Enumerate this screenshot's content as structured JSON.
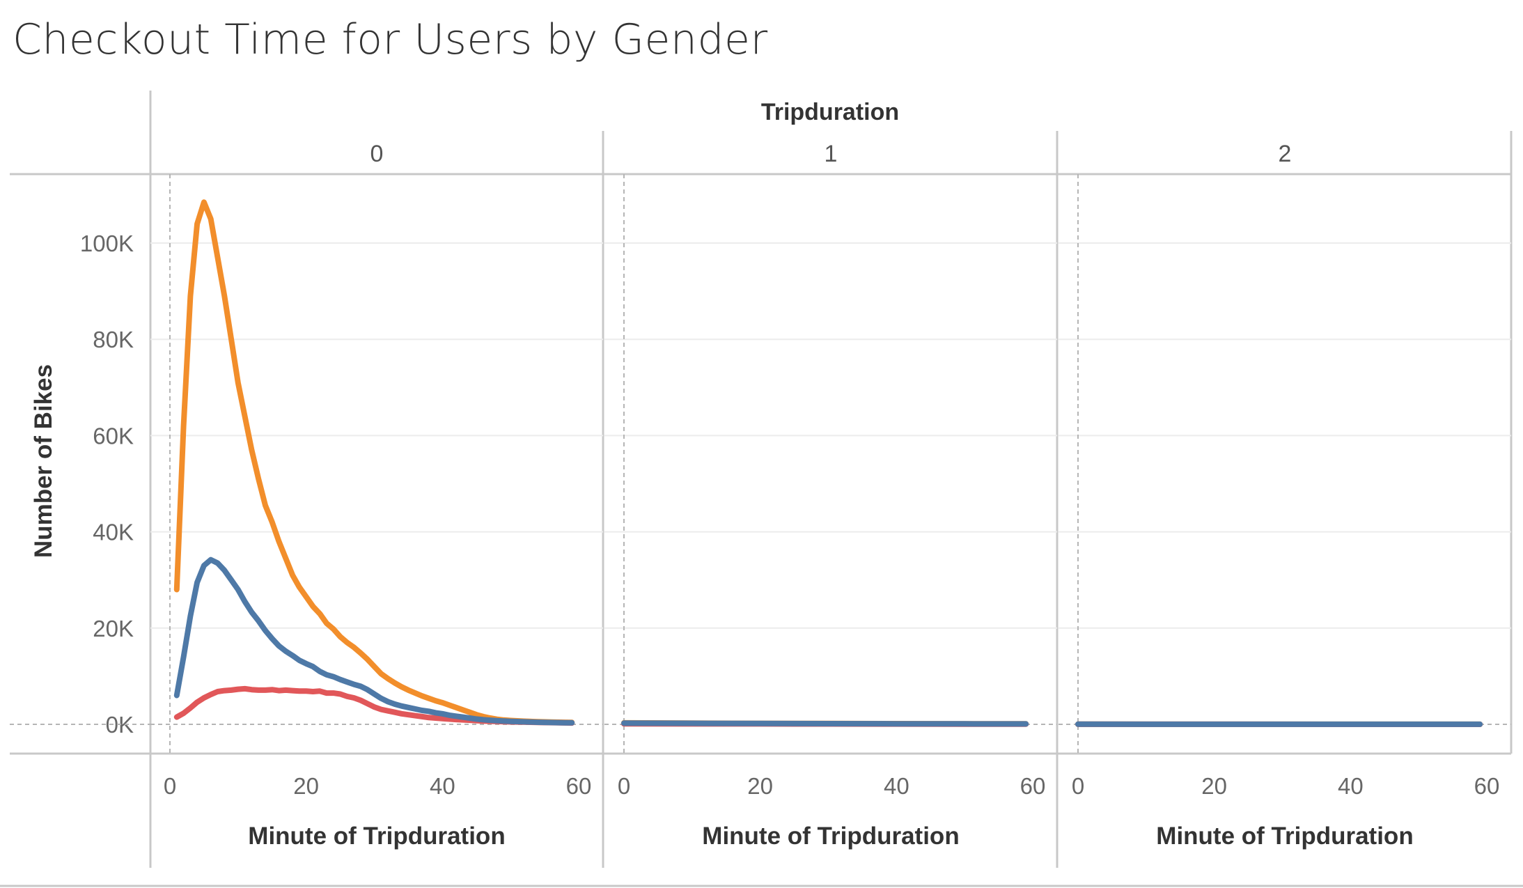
{
  "title": "Checkout Time for Users by Gender",
  "chart_data": {
    "type": "line",
    "column_header": "Tripduration",
    "ylabel": "Number of Bikes",
    "xlabel": "Minute of Tripduration",
    "ylim": [
      0,
      110000
    ],
    "xlim": [
      0,
      60
    ],
    "y_ticks": [
      {
        "value": 0,
        "label": "0K"
      },
      {
        "value": 20000,
        "label": "20K"
      },
      {
        "value": 40000,
        "label": "40K"
      },
      {
        "value": 60000,
        "label": "60K"
      },
      {
        "value": 80000,
        "label": "80K"
      },
      {
        "value": 100000,
        "label": "100K"
      }
    ],
    "x_ticks": [
      {
        "value": 0,
        "label": "0"
      },
      {
        "value": 20,
        "label": "20"
      },
      {
        "value": 40,
        "label": "40"
      },
      {
        "value": 60,
        "label": "60"
      }
    ],
    "grid": true,
    "colors": {
      "orange": "#F28E2B",
      "blue": "#4E79A7",
      "red": "#E15759"
    },
    "panels": [
      {
        "label": "0",
        "series": [
          {
            "color": "#F28E2B",
            "points": [
              [
                1,
                28000
              ],
              [
                2,
                62000
              ],
              [
                3,
                89000
              ],
              [
                4,
                104000
              ],
              [
                5,
                108500
              ],
              [
                6,
                105000
              ],
              [
                7,
                97000
              ],
              [
                8,
                89000
              ],
              [
                9,
                80000
              ],
              [
                10,
                71000
              ],
              [
                11,
                64000
              ],
              [
                12,
                57000
              ],
              [
                13,
                51000
              ],
              [
                14,
                45500
              ],
              [
                15,
                42000
              ],
              [
                16,
                38000
              ],
              [
                17,
                34500
              ],
              [
                18,
                31000
              ],
              [
                19,
                28500
              ],
              [
                20,
                26500
              ],
              [
                21,
                24500
              ],
              [
                22,
                23000
              ],
              [
                23,
                21000
              ],
              [
                24,
                19800
              ],
              [
                25,
                18200
              ],
              [
                26,
                17000
              ],
              [
                27,
                16000
              ],
              [
                28,
                14800
              ],
              [
                29,
                13500
              ],
              [
                30,
                12000
              ],
              [
                31,
                10500
              ],
              [
                32,
                9500
              ],
              [
                33,
                8600
              ],
              [
                34,
                7800
              ],
              [
                35,
                7100
              ],
              [
                36,
                6500
              ],
              [
                37,
                5900
              ],
              [
                38,
                5400
              ],
              [
                39,
                4900
              ],
              [
                40,
                4500
              ],
              [
                41,
                4000
              ],
              [
                42,
                3500
              ],
              [
                43,
                3000
              ],
              [
                44,
                2500
              ],
              [
                45,
                2000
              ],
              [
                46,
                1600
              ],
              [
                47,
                1300
              ],
              [
                48,
                1050
              ],
              [
                49,
                900
              ],
              [
                50,
                800
              ],
              [
                52,
                650
              ],
              [
                54,
                550
              ],
              [
                56,
                480
              ],
              [
                58,
                420
              ],
              [
                59,
                400
              ]
            ]
          },
          {
            "color": "#E15759",
            "points": [
              [
                1,
                1500
              ],
              [
                2,
                2300
              ],
              [
                3,
                3400
              ],
              [
                4,
                4600
              ],
              [
                5,
                5500
              ],
              [
                6,
                6200
              ],
              [
                7,
                6800
              ],
              [
                8,
                7000
              ],
              [
                9,
                7100
              ],
              [
                10,
                7300
              ],
              [
                11,
                7400
              ],
              [
                12,
                7200
              ],
              [
                13,
                7100
              ],
              [
                14,
                7100
              ],
              [
                15,
                7200
              ],
              [
                16,
                7000
              ],
              [
                17,
                7100
              ],
              [
                18,
                7000
              ],
              [
                19,
                6900
              ],
              [
                20,
                6900
              ],
              [
                21,
                6800
              ],
              [
                22,
                6900
              ],
              [
                23,
                6500
              ],
              [
                24,
                6500
              ],
              [
                25,
                6300
              ],
              [
                26,
                5800
              ],
              [
                27,
                5500
              ],
              [
                28,
                5000
              ],
              [
                29,
                4300
              ],
              [
                30,
                3600
              ],
              [
                31,
                3100
              ],
              [
                32,
                2800
              ],
              [
                33,
                2500
              ],
              [
                34,
                2200
              ],
              [
                35,
                2000
              ],
              [
                36,
                1800
              ],
              [
                37,
                1600
              ],
              [
                38,
                1400
              ],
              [
                39,
                1300
              ],
              [
                40,
                1200
              ],
              [
                42,
                1000
              ],
              [
                44,
                850
              ],
              [
                46,
                700
              ],
              [
                48,
                600
              ],
              [
                50,
                500
              ],
              [
                54,
                400
              ],
              [
                58,
                300
              ],
              [
                59,
                280
              ]
            ]
          },
          {
            "color": "#4E79A7",
            "points": [
              [
                1,
                6000
              ],
              [
                2,
                14000
              ],
              [
                3,
                22500
              ],
              [
                4,
                29500
              ],
              [
                5,
                33000
              ],
              [
                6,
                34200
              ],
              [
                7,
                33500
              ],
              [
                8,
                32000
              ],
              [
                9,
                30000
              ],
              [
                10,
                28000
              ],
              [
                11,
                25500
              ],
              [
                12,
                23300
              ],
              [
                13,
                21500
              ],
              [
                14,
                19500
              ],
              [
                15,
                17800
              ],
              [
                16,
                16300
              ],
              [
                17,
                15200
              ],
              [
                18,
                14300
              ],
              [
                19,
                13300
              ],
              [
                20,
                12600
              ],
              [
                21,
                12000
              ],
              [
                22,
                11000
              ],
              [
                23,
                10300
              ],
              [
                24,
                9900
              ],
              [
                25,
                9300
              ],
              [
                26,
                8800
              ],
              [
                27,
                8300
              ],
              [
                28,
                7900
              ],
              [
                29,
                7200
              ],
              [
                30,
                6300
              ],
              [
                31,
                5400
              ],
              [
                32,
                4700
              ],
              [
                33,
                4200
              ],
              [
                34,
                3800
              ],
              [
                35,
                3500
              ],
              [
                36,
                3200
              ],
              [
                37,
                2900
              ],
              [
                38,
                2700
              ],
              [
                39,
                2400
              ],
              [
                40,
                2200
              ],
              [
                41,
                1900
              ],
              [
                42,
                1700
              ],
              [
                43,
                1500
              ],
              [
                44,
                1300
              ],
              [
                45,
                1100
              ],
              [
                46,
                950
              ],
              [
                47,
                850
              ],
              [
                48,
                750
              ],
              [
                50,
                620
              ],
              [
                52,
                520
              ],
              [
                54,
                440
              ],
              [
                56,
                380
              ],
              [
                58,
                340
              ],
              [
                59,
                320
              ]
            ]
          }
        ]
      },
      {
        "label": "1",
        "series": [
          {
            "color": "#F28E2B",
            "points": [
              [
                0,
                300
              ],
              [
                10,
                250
              ],
              [
                20,
                200
              ],
              [
                30,
                170
              ],
              [
                40,
                150
              ],
              [
                50,
                120
              ],
              [
                59,
                100
              ]
            ]
          },
          {
            "color": "#E15759",
            "points": [
              [
                0,
                100
              ],
              [
                10,
                90
              ],
              [
                20,
                80
              ],
              [
                30,
                70
              ],
              [
                40,
                60
              ],
              [
                50,
                50
              ],
              [
                59,
                40
              ]
            ]
          },
          {
            "color": "#4E79A7",
            "points": [
              [
                0,
                250
              ],
              [
                10,
                220
              ],
              [
                20,
                180
              ],
              [
                30,
                150
              ],
              [
                40,
                120
              ],
              [
                50,
                100
              ],
              [
                59,
                80
              ]
            ]
          }
        ]
      },
      {
        "label": "2",
        "series": [
          {
            "color": "#F28E2B",
            "points": [
              [
                0,
                30
              ],
              [
                20,
                20
              ],
              [
                40,
                15
              ],
              [
                59,
                10
              ]
            ]
          },
          {
            "color": "#E15759",
            "points": [
              [
                0,
                10
              ],
              [
                20,
                8
              ],
              [
                40,
                5
              ],
              [
                59,
                4
              ]
            ]
          },
          {
            "color": "#4E79A7",
            "points": [
              [
                0,
                25
              ],
              [
                20,
                18
              ],
              [
                40,
                12
              ],
              [
                59,
                8
              ]
            ]
          }
        ]
      }
    ]
  }
}
